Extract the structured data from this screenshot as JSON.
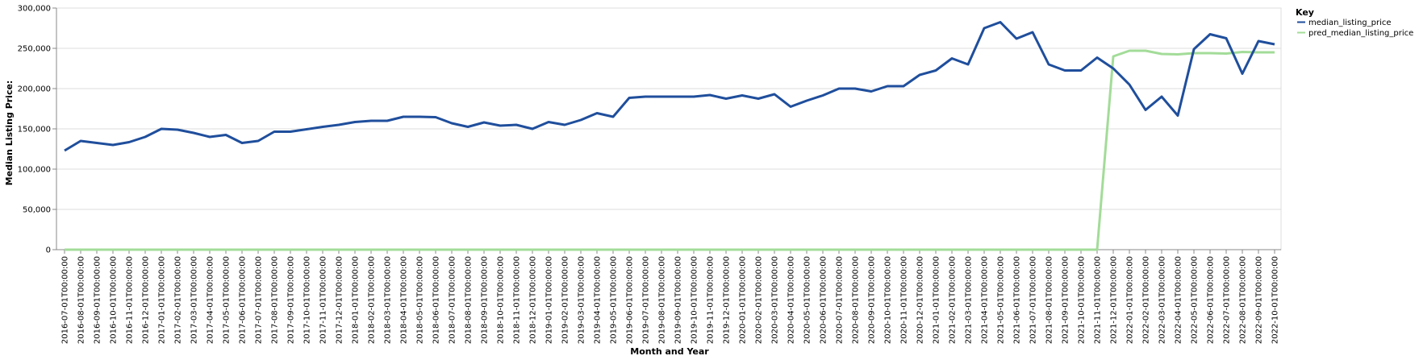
{
  "chart_data": {
    "type": "line",
    "xlabel": "Month and Year",
    "ylabel": "Median Listing Price:",
    "ylim": [
      0,
      300000
    ],
    "yticks": [
      0,
      50000,
      100000,
      150000,
      200000,
      250000,
      300000
    ],
    "ytick_labels": [
      "0",
      "50,000",
      "100,000",
      "150,000",
      "200,000",
      "250,000",
      "300,000"
    ],
    "grid": true,
    "legend": {
      "title": "Key",
      "placement": "right"
    },
    "x": [
      "2016-07-01T00:00:00",
      "2016-08-01T00:00:00",
      "2016-09-01T00:00:00",
      "2016-10-01T00:00:00",
      "2016-11-01T00:00:00",
      "2016-12-01T00:00:00",
      "2017-01-01T00:00:00",
      "2017-02-01T00:00:00",
      "2017-03-01T00:00:00",
      "2017-04-01T00:00:00",
      "2017-05-01T00:00:00",
      "2017-06-01T00:00:00",
      "2017-07-01T00:00:00",
      "2017-08-01T00:00:00",
      "2017-09-01T00:00:00",
      "2017-10-01T00:00:00",
      "2017-11-01T00:00:00",
      "2017-12-01T00:00:00",
      "2018-01-01T00:00:00",
      "2018-02-01T00:00:00",
      "2018-03-01T00:00:00",
      "2018-04-01T00:00:00",
      "2018-05-01T00:00:00",
      "2018-06-01T00:00:00",
      "2018-07-01T00:00:00",
      "2018-08-01T00:00:00",
      "2018-09-01T00:00:00",
      "2018-10-01T00:00:00",
      "2018-11-01T00:00:00",
      "2018-12-01T00:00:00",
      "2019-01-01T00:00:00",
      "2019-02-01T00:00:00",
      "2019-03-01T00:00:00",
      "2019-04-01T00:00:00",
      "2019-05-01T00:00:00",
      "2019-06-01T00:00:00",
      "2019-07-01T00:00:00",
      "2019-08-01T00:00:00",
      "2019-09-01T00:00:00",
      "2019-10-01T00:00:00",
      "2019-11-01T00:00:00",
      "2019-12-01T00:00:00",
      "2020-01-01T00:00:00",
      "2020-02-01T00:00:00",
      "2020-03-01T00:00:00",
      "2020-04-01T00:00:00",
      "2020-05-01T00:00:00",
      "2020-06-01T00:00:00",
      "2020-07-01T00:00:00",
      "2020-08-01T00:00:00",
      "2020-09-01T00:00:00",
      "2020-10-01T00:00:00",
      "2020-11-01T00:00:00",
      "2020-12-01T00:00:00",
      "2021-01-01T00:00:00",
      "2021-02-01T00:00:00",
      "2021-03-01T00:00:00",
      "2021-04-01T00:00:00",
      "2021-05-01T00:00:00",
      "2021-06-01T00:00:00",
      "2021-07-01T00:00:00",
      "2021-08-01T00:00:00",
      "2021-09-01T00:00:00",
      "2021-10-01T00:00:00",
      "2021-11-01T00:00:00",
      "2021-12-01T00:00:00",
      "2022-01-01T00:00:00",
      "2022-02-01T00:00:00",
      "2022-03-01T00:00:00",
      "2022-04-01T00:00:00",
      "2022-05-01T00:00:00",
      "2022-06-01T00:00:00",
      "2022-07-01T00:00:00",
      "2022-08-01T00:00:00",
      "2022-09-01T00:00:00",
      "2022-10-01T00:00:00"
    ],
    "series": [
      {
        "name": "median_listing_price",
        "color": "#1f4e9c",
        "values": [
          123000,
          135000,
          132500,
          130000,
          133500,
          140000,
          150000,
          149000,
          145000,
          140000,
          142500,
          132500,
          135000,
          146500,
          146500,
          149500,
          152500,
          155000,
          158500,
          160000,
          160000,
          165000,
          165000,
          164500,
          157000,
          152500,
          158000,
          154000,
          155000,
          150000,
          158500,
          155000,
          161000,
          169500,
          165000,
          188500,
          190000,
          190000,
          190000,
          190000,
          192000,
          187500,
          191500,
          187500,
          193000,
          177500,
          185000,
          191500,
          200000,
          200000,
          196500,
          203000,
          203000,
          217000,
          222500,
          237500,
          230000,
          275000,
          282500,
          262000,
          270000,
          230000,
          222500,
          222500,
          238500,
          225000,
          205000,
          173500,
          190000,
          166500,
          249000,
          267500,
          262500,
          218500,
          259000,
          255000
        ]
      },
      {
        "name": "pred_median_listing_price",
        "color": "#a3dc99",
        "values": [
          0,
          0,
          0,
          0,
          0,
          0,
          0,
          0,
          0,
          0,
          0,
          0,
          0,
          0,
          0,
          0,
          0,
          0,
          0,
          0,
          0,
          0,
          0,
          0,
          0,
          0,
          0,
          0,
          0,
          0,
          0,
          0,
          0,
          0,
          0,
          0,
          0,
          0,
          0,
          0,
          0,
          0,
          0,
          0,
          0,
          0,
          0,
          0,
          0,
          0,
          0,
          0,
          0,
          0,
          0,
          0,
          0,
          0,
          0,
          0,
          0,
          0,
          0,
          0,
          0,
          240000,
          247000,
          247000,
          243000,
          242500,
          244000,
          244000,
          243500,
          245500,
          245000,
          245000
        ]
      }
    ]
  }
}
